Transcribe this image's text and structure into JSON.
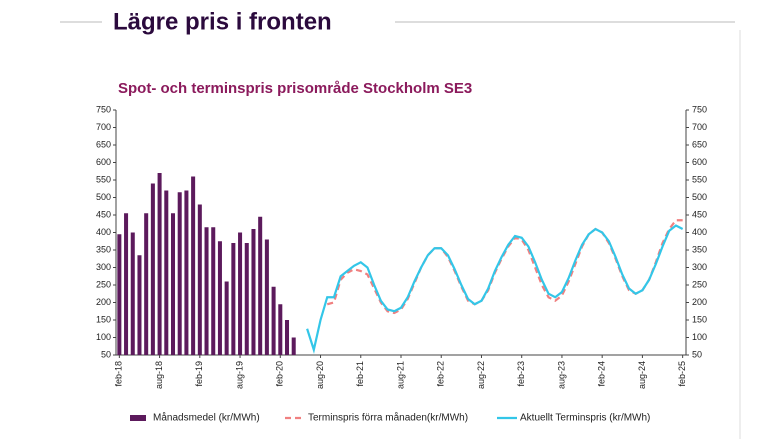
{
  "header": {
    "title": "Lägre pris i fronten"
  },
  "chart_data": {
    "type": "bar",
    "title": "Spot- och terminspris prisområde Stockholm SE3",
    "categories": [
      "feb-18",
      null,
      null,
      null,
      null,
      null,
      "aug-18",
      null,
      null,
      null,
      null,
      null,
      "feb-19",
      null,
      null,
      null,
      null,
      null,
      "aug-19",
      null,
      null,
      null,
      null,
      null,
      "feb-20",
      null,
      null,
      null,
      null,
      null,
      "aug-20",
      null,
      null,
      null,
      null,
      null,
      "feb-21",
      null,
      null,
      null,
      null,
      null,
      "aug-21",
      null,
      null,
      null,
      null,
      null,
      "feb-22",
      null,
      null,
      null,
      null,
      null,
      "aug-22",
      null,
      null,
      null,
      null,
      null,
      "feb-23",
      null,
      null,
      null,
      null,
      null,
      "aug-23",
      null,
      null,
      null,
      null,
      null,
      "feb-24",
      null,
      null,
      null,
      null,
      null,
      "aug-24",
      null,
      null,
      null,
      null,
      null,
      "feb-25"
    ],
    "series": [
      {
        "name": "Månadsmedel (kr/MWh)",
        "type": "bar",
        "color": "#5c1a5c",
        "values": [
          395,
          455,
          400,
          335,
          455,
          540,
          570,
          520,
          455,
          515,
          520,
          560,
          480,
          415,
          415,
          375,
          260,
          370,
          400,
          370,
          410,
          445,
          380,
          245,
          195,
          150,
          100,
          null,
          null,
          null,
          null,
          null,
          null,
          null,
          null,
          null,
          null,
          null,
          null,
          null,
          null,
          null,
          null,
          null,
          null,
          null,
          null,
          null,
          null,
          null,
          null,
          null,
          null,
          null,
          null,
          null,
          null,
          null,
          null,
          null,
          null,
          null,
          null,
          null,
          null,
          null,
          null,
          null,
          null,
          null,
          null,
          null,
          null,
          null,
          null,
          null,
          null,
          null,
          null,
          null,
          null,
          null,
          null,
          null,
          null
        ]
      },
      {
        "name": "Terminspris förra månaden(kr/MWh)",
        "type": "line",
        "dashed": true,
        "color": "#f08080",
        "values": [
          null,
          null,
          null,
          null,
          null,
          null,
          null,
          null,
          null,
          null,
          null,
          null,
          null,
          null,
          null,
          null,
          null,
          null,
          null,
          null,
          null,
          null,
          null,
          null,
          null,
          null,
          null,
          null,
          null,
          null,
          null,
          195,
          200,
          265,
          285,
          295,
          290,
          280,
          240,
          200,
          175,
          170,
          180,
          210,
          255,
          300,
          335,
          355,
          355,
          330,
          290,
          245,
          205,
          195,
          205,
          235,
          285,
          325,
          360,
          385,
          380,
          350,
          300,
          250,
          215,
          205,
          220,
          260,
          310,
          360,
          395,
          410,
          400,
          370,
          325,
          275,
          235,
          225,
          235,
          265,
          315,
          370,
          410,
          435,
          435
        ]
      },
      {
        "name": "Aktuellt Terminspris (kr/MWh)",
        "type": "line",
        "dashed": false,
        "color": "#33c6e8",
        "values": [
          null,
          null,
          null,
          null,
          null,
          null,
          null,
          null,
          null,
          null,
          null,
          null,
          null,
          null,
          null,
          null,
          null,
          null,
          null,
          null,
          null,
          null,
          null,
          null,
          null,
          null,
          null,
          null,
          125,
          65,
          150,
          215,
          215,
          275,
          290,
          305,
          315,
          300,
          250,
          205,
          180,
          175,
          185,
          215,
          260,
          300,
          335,
          355,
          355,
          335,
          295,
          250,
          210,
          195,
          205,
          240,
          290,
          330,
          365,
          390,
          385,
          360,
          315,
          265,
          225,
          215,
          230,
          270,
          320,
          365,
          395,
          410,
          400,
          375,
          330,
          280,
          240,
          225,
          235,
          265,
          310,
          360,
          405,
          420,
          410
        ]
      }
    ],
    "ylim": [
      50,
      750
    ],
    "yticks": [
      50,
      100,
      150,
      200,
      250,
      300,
      350,
      400,
      450,
      500,
      550,
      600,
      650,
      700,
      750
    ]
  }
}
